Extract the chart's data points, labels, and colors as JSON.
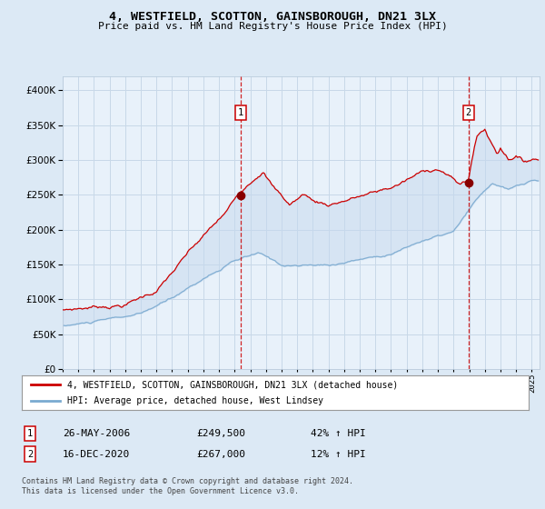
{
  "title": "4, WESTFIELD, SCOTTON, GAINSBOROUGH, DN21 3LX",
  "subtitle": "Price paid vs. HM Land Registry's House Price Index (HPI)",
  "legend_line1": "4, WESTFIELD, SCOTTON, GAINSBOROUGH, DN21 3LX (detached house)",
  "legend_line2": "HPI: Average price, detached house, West Lindsey",
  "annotation1_label": "1",
  "annotation1_date": "26-MAY-2006",
  "annotation1_price": "£249,500",
  "annotation1_hpi": "42% ↑ HPI",
  "annotation2_label": "2",
  "annotation2_date": "16-DEC-2020",
  "annotation2_price": "£267,000",
  "annotation2_hpi": "12% ↑ HPI",
  "footer": "Contains HM Land Registry data © Crown copyright and database right 2024.\nThis data is licensed under the Open Government Licence v3.0.",
  "bg_color": "#dce9f5",
  "plot_bg_color": "#e8f1fa",
  "grid_color": "#c8d8e8",
  "red_line_color": "#cc0000",
  "blue_line_color": "#7aaad0",
  "fill_color": "#c5d8ee",
  "dot_color": "#880000",
  "vline_color": "#cc0000",
  "ylim": [
    0,
    420000
  ],
  "yticks": [
    0,
    50000,
    100000,
    150000,
    200000,
    250000,
    300000,
    350000,
    400000
  ],
  "xlim_start": 1995.0,
  "xlim_end": 2025.5,
  "sale1_x": 2006.4,
  "sale1_y": 249500,
  "sale2_x": 2020.95,
  "sale2_y": 267000
}
